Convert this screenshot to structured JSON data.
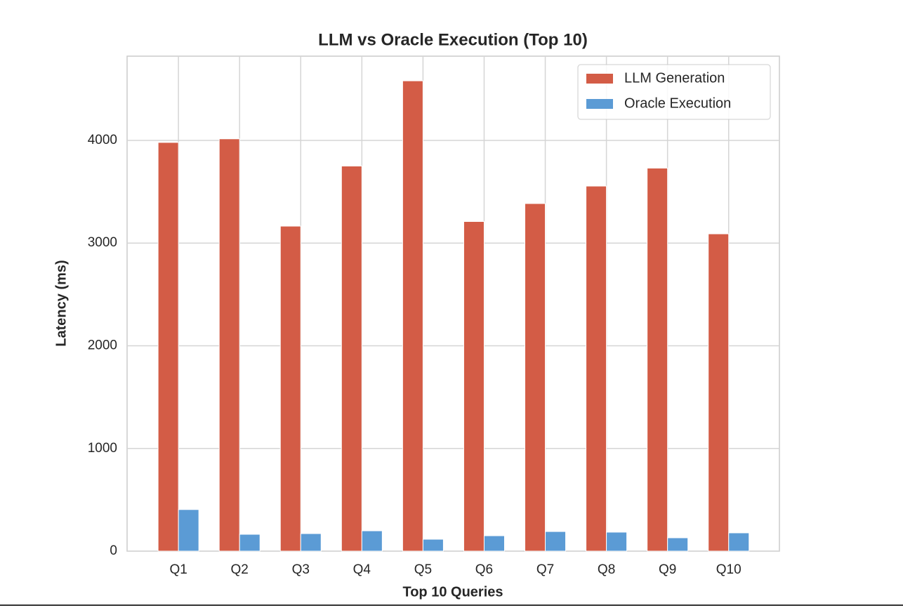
{
  "chart_data": {
    "type": "bar",
    "title": "LLM vs Oracle Execution (Top 10)",
    "x_label": "Top 10 Queries",
    "y_label": "Latency (ms)",
    "categories": [
      "Q1",
      "Q2",
      "Q3",
      "Q4",
      "Q5",
      "Q6",
      "Q7",
      "Q8",
      "Q9",
      "Q10"
    ],
    "series": [
      {
        "name": "LLM Generation",
        "color": "#d35c46",
        "values": [
          3980,
          4015,
          3165,
          3750,
          4580,
          3210,
          3385,
          3555,
          3730,
          3090
        ]
      },
      {
        "name": "Oracle Execution",
        "color": "#5b9bd5",
        "values": [
          405,
          164,
          171,
          198,
          116,
          150,
          191,
          185,
          130,
          178
        ]
      }
    ],
    "ylim": [
      0,
      4820
    ],
    "yticks": [
      0,
      1000,
      2000,
      3000,
      4000
    ],
    "grid": true,
    "legend": "upper right"
  }
}
